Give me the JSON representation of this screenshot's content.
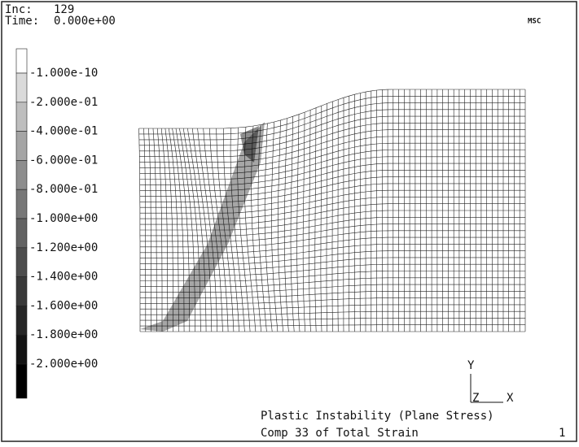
{
  "header": {
    "inc_label": "Inc:",
    "inc_value": "129",
    "time_label": "Time:",
    "time_value": "0.000e+00",
    "logo": "MSC"
  },
  "legend": {
    "labels": [
      "-1.000e-10",
      "-2.000e-01",
      "-4.000e-01",
      "-6.000e-01",
      "-8.000e-01",
      "-1.000e+00",
      "-1.200e+00",
      "-1.400e+00",
      "-1.600e+00",
      "-1.800e+00",
      "-2.000e+00"
    ]
  },
  "triad": {
    "y": "Y",
    "z": "Z",
    "x": "X"
  },
  "footer": {
    "title": "Plastic Instability (Plane Stress)",
    "subtitle": "Comp 33 of Total Strain",
    "page": "1"
  }
}
